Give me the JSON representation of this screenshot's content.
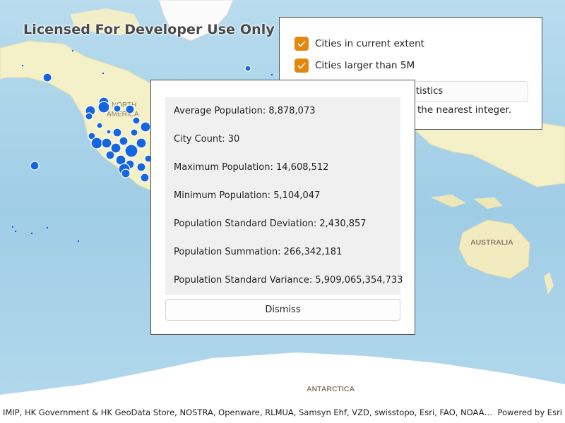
{
  "map": {
    "watermark": "Licensed For Developer Use Only",
    "labels": {
      "north_america_1": "NORTH",
      "north_america_2": "AMERICA",
      "australia": "AUSTRALIA",
      "antarctica": "ANTARCTICA"
    },
    "colors": {
      "ocean": "#a9d4ea",
      "land": "#f4f0c8",
      "point": "#1565e0"
    }
  },
  "options_panel": {
    "checkbox_extent": {
      "label": "Cities in current extent",
      "checked": true
    },
    "checkbox_large": {
      "label": "Cities larger than 5M",
      "checked": true
    },
    "button_label_visible": "tistics",
    "note_visible": "the nearest integer."
  },
  "results_dialog": {
    "stats": [
      "Average Population: 8,878,073",
      "City Count: 30",
      "Maximum Population: 14,608,512",
      "Minimum Population: 5,104,047",
      "Population Standard Deviation: 2,430,857",
      "Population Summation: 266,342,181",
      "Population Standard Variance: 5,909,065,354,733"
    ],
    "dismiss_label": "Dismiss"
  },
  "attribution": {
    "text": "IMIP, HK Government & HK GeoData Store, NOSTRA, Openware, RLMUA, Samsyn Ehf, VZD, swisstopo, Esri, FAO, NOAA, USGS, NR...",
    "powered_by": "Powered by Esri"
  },
  "accent_color": "#e3870f"
}
